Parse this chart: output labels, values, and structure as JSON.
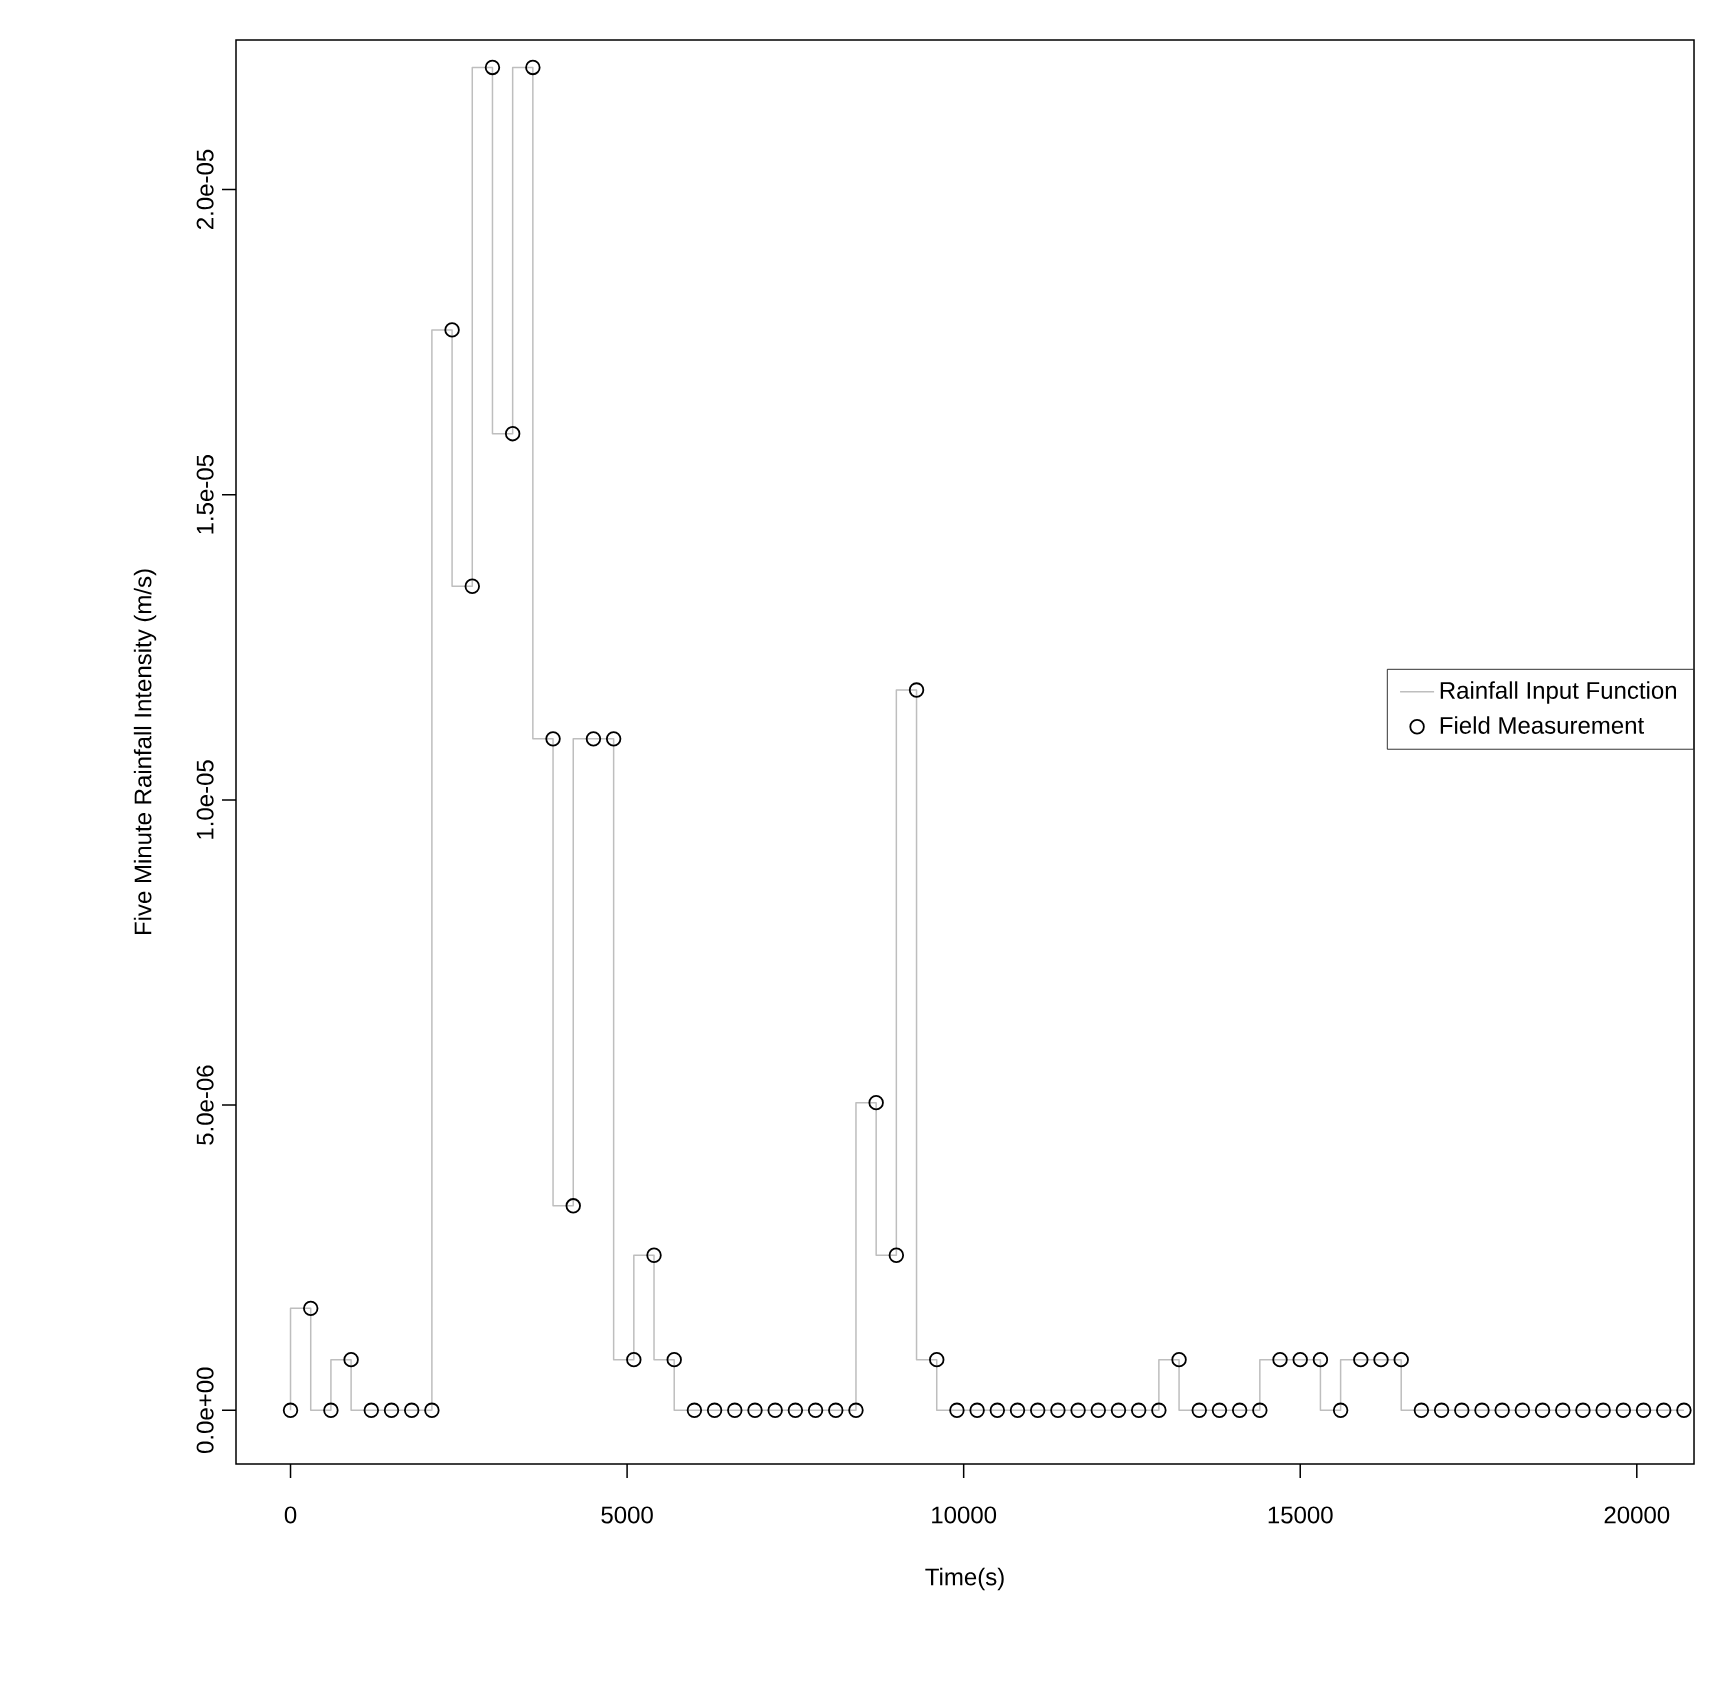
{
  "chart_data": {
    "type": "step",
    "xlabel": "Time(s)",
    "ylabel": "Five Minute Rainfall Intensity (m/s)",
    "x": [
      0,
      300,
      600,
      900,
      1200,
      1500,
      1800,
      2100,
      2400,
      2700,
      3000,
      3300,
      3600,
      3900,
      4200,
      4500,
      4800,
      5100,
      5400,
      5700,
      6000,
      6300,
      6600,
      6900,
      7200,
      7500,
      7800,
      8100,
      8400,
      8700,
      9000,
      9300,
      9600,
      9900,
      10200,
      10500,
      10800,
      11100,
      11400,
      11700,
      12000,
      12300,
      12600,
      12900,
      13200,
      13500,
      13800,
      14100,
      14400,
      14700,
      15000,
      15300,
      15600,
      15900,
      16200,
      16500,
      16800,
      17100,
      17400,
      17700,
      18000,
      18300,
      18600,
      18900,
      19200,
      19500,
      19800,
      20100,
      20400,
      20700
    ],
    "series": [
      {
        "name": "Rainfall Input Function",
        "color": "#bebebe",
        "marker": "none",
        "line_style": "solid",
        "values": [
          0,
          1.67e-06,
          0,
          8.3e-07,
          0,
          0,
          0,
          0,
          1.77e-05,
          1.35e-05,
          2.2e-05,
          1.6e-05,
          2.2e-05,
          1.1e-05,
          3.35e-06,
          1.1e-05,
          1.1e-05,
          8.3e-07,
          2.54e-06,
          8.3e-07,
          0,
          0,
          0,
          0,
          0,
          0,
          0,
          0,
          0,
          5.04e-06,
          2.54e-06,
          1.18e-05,
          8.3e-07,
          0,
          0,
          0,
          0,
          0,
          0,
          0,
          0,
          0,
          0,
          0,
          8.3e-07,
          0,
          0,
          0,
          0,
          8.3e-07,
          8.3e-07,
          8.3e-07,
          0,
          8.3e-07,
          8.3e-07,
          8.3e-07,
          0,
          0,
          0,
          0,
          0,
          0,
          0,
          0,
          0,
          0,
          0,
          0,
          0,
          0
        ]
      },
      {
        "name": "Field Measurement",
        "type": "scatter",
        "color": "#000000",
        "marker": "circle",
        "values": [
          0,
          1.67e-06,
          0,
          8.3e-07,
          0,
          0,
          0,
          0,
          1.77e-05,
          1.35e-05,
          2.2e-05,
          1.6e-05,
          2.2e-05,
          1.1e-05,
          3.35e-06,
          1.1e-05,
          1.1e-05,
          8.3e-07,
          2.54e-06,
          8.3e-07,
          0,
          0,
          0,
          0,
          0,
          0,
          0,
          0,
          0,
          5.04e-06,
          2.54e-06,
          1.18e-05,
          8.3e-07,
          0,
          0,
          0,
          0,
          0,
          0,
          0,
          0,
          0,
          0,
          0,
          8.3e-07,
          0,
          0,
          0,
          0,
          8.3e-07,
          8.3e-07,
          8.3e-07,
          0,
          8.3e-07,
          8.3e-07,
          8.3e-07,
          0,
          0,
          0,
          0,
          0,
          0,
          0,
          0,
          0,
          0,
          0,
          0,
          0,
          0
        ]
      }
    ],
    "xlim": [
      -810,
      20850
    ],
    "ylim": [
      -8.8e-07,
      2.245e-05
    ],
    "xticks": [
      0,
      5000,
      10000,
      15000,
      20000
    ],
    "yticks": [
      {
        "value": 0,
        "label": "0.0e+00"
      },
      {
        "value": 5e-06,
        "label": "5.0e-06"
      },
      {
        "value": 1e-05,
        "label": "1.0e-05"
      },
      {
        "value": 1.5e-05,
        "label": "1.5e-05"
      },
      {
        "value": 2e-05,
        "label": "2.0e-05"
      }
    ],
    "grid": false,
    "legend": "right"
  }
}
